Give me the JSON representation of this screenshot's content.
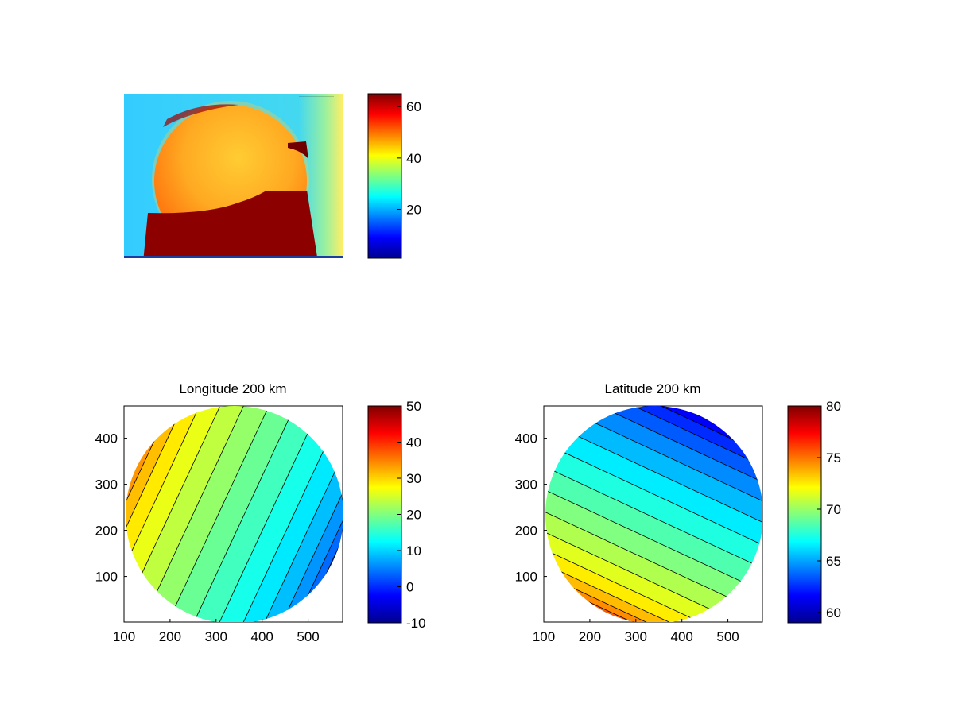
{
  "chart_data": [
    {
      "type": "heatmap",
      "title": "",
      "xlabel": "",
      "ylabel": "",
      "axis_visible": false,
      "colorbar": {
        "range": [
          1,
          65
        ],
        "ticks": [
          20,
          40,
          60
        ],
        "colormap": "jet"
      },
      "image_annotation": "small timestamp text (illegible) in the upper-right corner",
      "description_values": {
        "background_level": 28,
        "disk_level": 48,
        "disk_lower_level": 65
      }
    },
    {
      "type": "heatmap",
      "subtype": "filled-contour",
      "title": "Longitude 200 km",
      "xlabel": "",
      "ylabel": "",
      "xlim": [
        100,
        575
      ],
      "ylim": [
        1,
        470
      ],
      "xticks": [
        100,
        200,
        300,
        400,
        500
      ],
      "yticks": [
        100,
        200,
        300,
        400
      ],
      "colorbar": {
        "range": [
          -10,
          50
        ],
        "ticks": [
          -10,
          0,
          10,
          20,
          30,
          40,
          50
        ],
        "colormap": "jet"
      },
      "contour_levels": [
        0,
        2.5,
        5,
        7.5,
        10,
        12.5,
        15,
        17.5,
        20,
        22.5,
        25,
        27.5,
        30,
        32.5,
        35,
        37.5
      ],
      "field": {
        "value_at_left_limb": 37,
        "value_at_right_limb": 0,
        "gradient": "decreasing left to right, contours tilted",
        "disk_center": [
          340,
          240
        ],
        "disk_radius": 235
      }
    },
    {
      "type": "heatmap",
      "subtype": "filled-contour",
      "title": "Latitude 200 km",
      "xlabel": "",
      "ylabel": "",
      "xlim": [
        100,
        575
      ],
      "ylim": [
        1,
        470
      ],
      "xticks": [
        100,
        200,
        300,
        400,
        500
      ],
      "yticks": [
        100,
        200,
        300,
        400
      ],
      "colorbar": {
        "range": [
          59,
          80
        ],
        "ticks": [
          60,
          65,
          70,
          75,
          80
        ],
        "colormap": "jet"
      },
      "contour_levels": [
        60,
        61,
        62,
        63,
        64,
        65,
        66,
        67,
        68,
        69,
        70,
        71,
        72,
        73,
        74,
        75,
        76
      ],
      "field": {
        "value_at_upper_limb": 59.5,
        "value_at_lower_limb": 76,
        "gradient": "increasing toward lower-left, contours tilted",
        "disk_center": [
          340,
          240
        ],
        "disk_radius": 235
      }
    }
  ]
}
